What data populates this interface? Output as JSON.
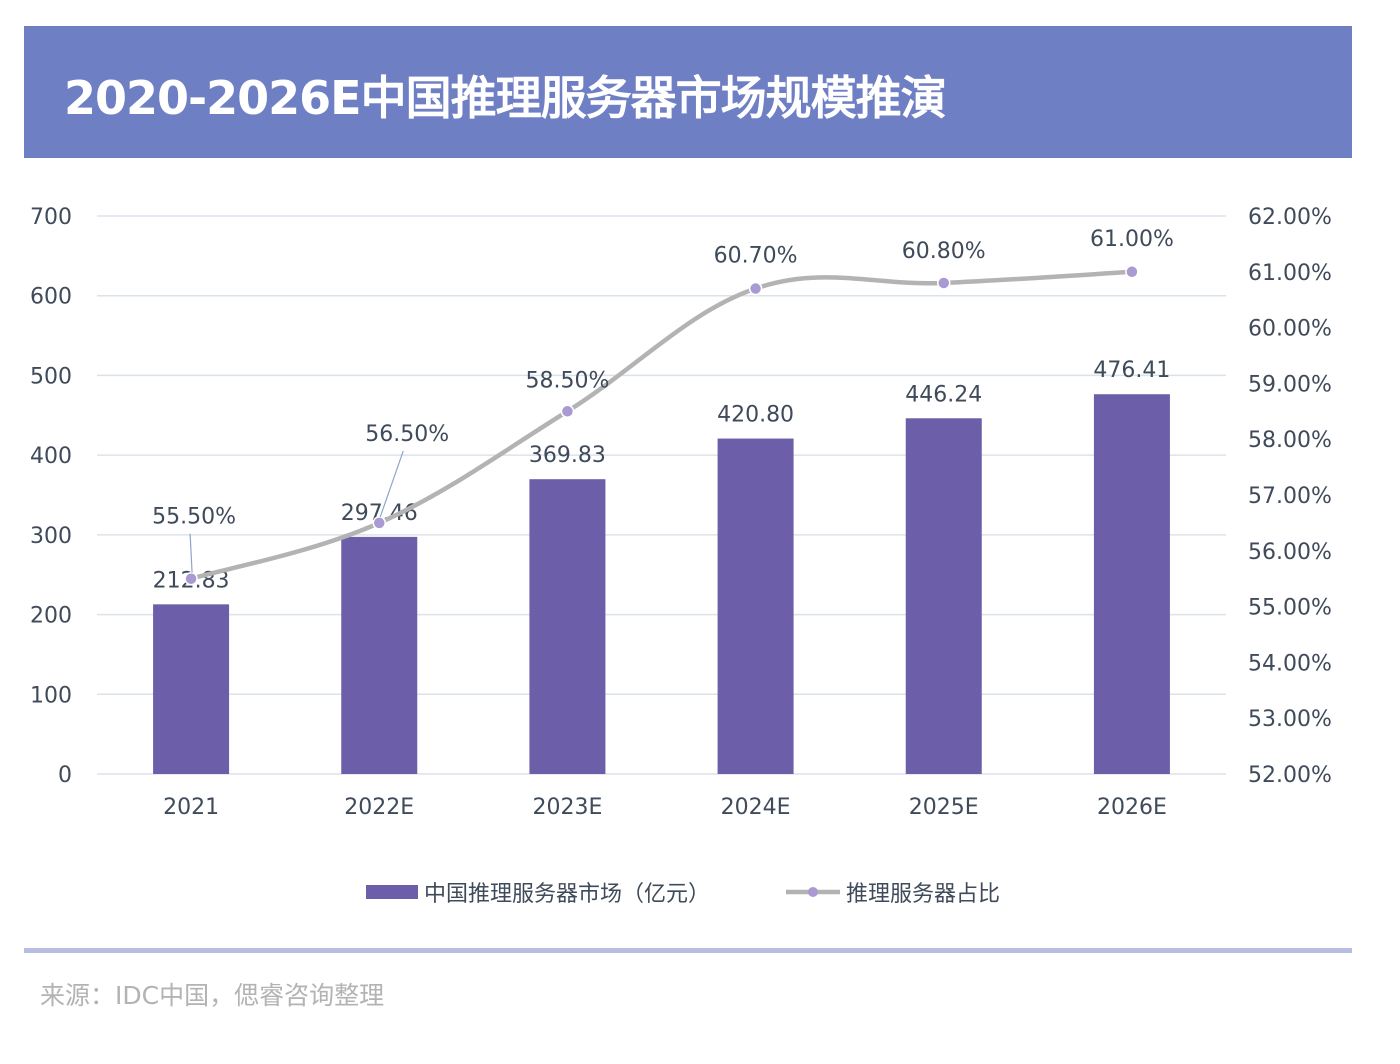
{
  "header": {
    "title": "2020-2026E中国推理服务器市场规模推演"
  },
  "footer": {
    "source": "来源：IDC中国，偲睿咨询整理"
  },
  "colors": {
    "banner": "#6f7fc3",
    "bar": "#6c5ea8",
    "line": "#b3b3b3",
    "marker": "#a99ad4",
    "axis_text": "#3f4a5a",
    "grid": "#dbe3ea",
    "source_text": "#b3b3b3"
  },
  "chart_data": {
    "type": "bar",
    "categories": [
      "2021",
      "2022E",
      "2023E",
      "2024E",
      "2025E",
      "2026E"
    ],
    "series": [
      {
        "name": "中国推理服务器市场（亿元）",
        "type": "bar",
        "axis": "left",
        "values": [
          212.83,
          297.46,
          369.83,
          420.8,
          446.24,
          476.41
        ],
        "labels": [
          "212.83",
          "297.46",
          "369.83",
          "420.80",
          "446.24",
          "476.41"
        ]
      },
      {
        "name": "推理服务器占比",
        "type": "line",
        "axis": "right",
        "smooth": true,
        "values": [
          55.5,
          56.5,
          58.5,
          60.7,
          60.8,
          61.0
        ],
        "labels": [
          "55.50%",
          "56.50%",
          "58.50%",
          "60.70%",
          "60.80%",
          "61.00%"
        ]
      }
    ],
    "y_left": {
      "ylim": [
        0,
        700
      ],
      "ticks": [
        "0",
        "100",
        "200",
        "300",
        "400",
        "500",
        "600",
        "700"
      ]
    },
    "y_right": {
      "ylim": [
        52,
        62
      ],
      "ticks": [
        "52.00%",
        "53.00%",
        "54.00%",
        "55.00%",
        "56.00%",
        "57.00%",
        "58.00%",
        "59.00%",
        "60.00%",
        "61.00%",
        "62.00%"
      ]
    },
    "grid": true,
    "legend": "bottom"
  }
}
